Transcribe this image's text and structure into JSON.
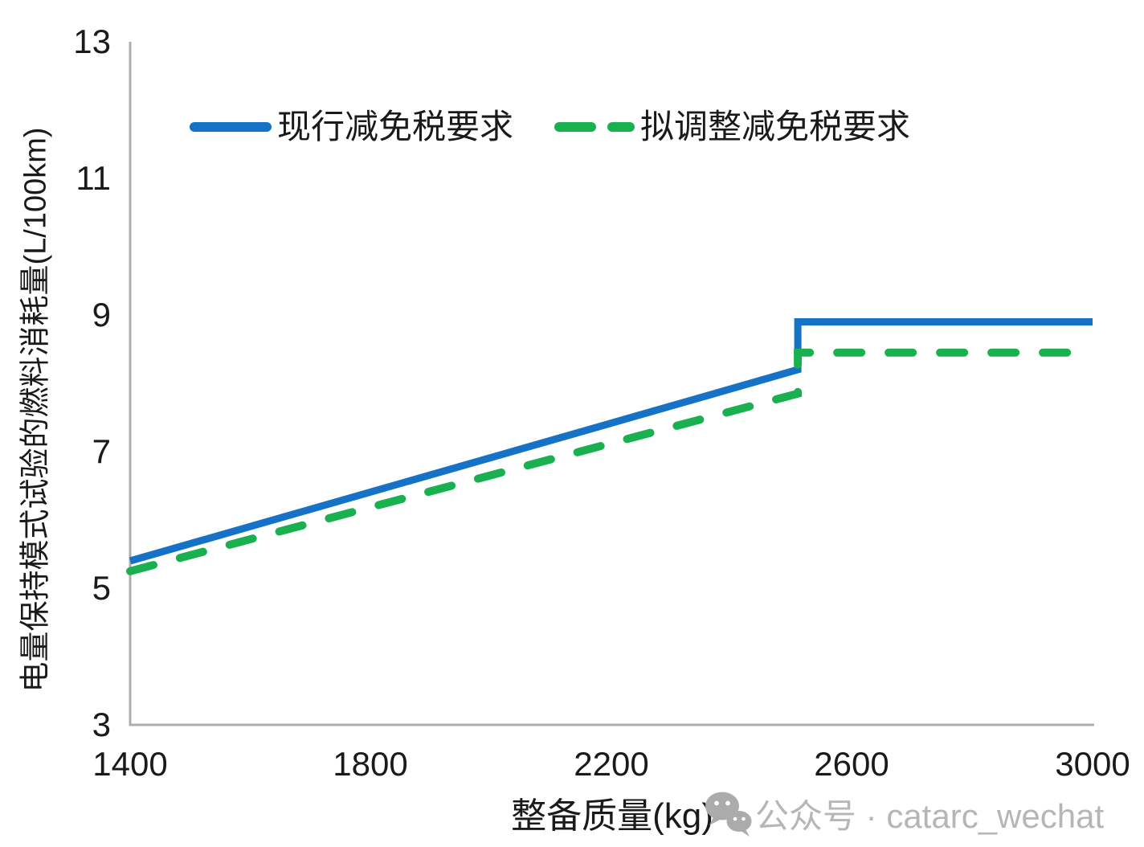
{
  "chart_data": {
    "type": "line",
    "title": "",
    "xlabel": "整备质量(kg)",
    "ylabel": "电量保持模式试验的燃料消耗量(L/100km)",
    "xlim": [
      1400,
      3000
    ],
    "ylim": [
      3,
      13
    ],
    "x_ticks": [
      "1400",
      "1800",
      "2200",
      "2600",
      "3000"
    ],
    "y_ticks": [
      "13",
      "11",
      "9",
      "7",
      "5",
      "3"
    ],
    "grid": false,
    "legend_position": "top-inside",
    "axis_color": "#aeaeae",
    "series": [
      {
        "name": "现行减免税要求",
        "color": "#1572c6",
        "style": "solid",
        "points": [
          [
            1400,
            5.4
          ],
          [
            2510,
            8.2
          ],
          [
            2510,
            8.9
          ],
          [
            3000,
            8.9
          ]
        ]
      },
      {
        "name": "拟调整减免税要求",
        "color": "#19b04f",
        "style": "dashed",
        "points": [
          [
            1400,
            5.25
          ],
          [
            2510,
            7.85
          ],
          [
            2510,
            8.45
          ],
          [
            3000,
            8.45
          ]
        ]
      }
    ]
  },
  "watermark": {
    "icon": "wechat-icon",
    "text": "公众号 · catarc_wechat",
    "color": "#b6b6b6",
    "icon_color": "#ababab"
  }
}
